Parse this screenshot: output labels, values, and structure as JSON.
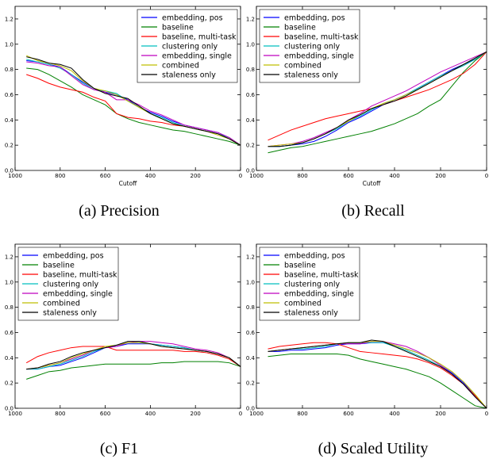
{
  "chart_data": [
    {
      "type": "line",
      "caption": "(a) Precision",
      "xlabel": "Cutoff",
      "ylabel": "",
      "xlim": [
        1000,
        0
      ],
      "ylim": [
        0,
        1.3
      ],
      "x_ticks": [
        1000,
        800,
        600,
        400,
        200,
        0
      ],
      "y_ticks": [
        0.0,
        0.2,
        0.4,
        0.6,
        0.8,
        1.0,
        1.2
      ],
      "grid": false,
      "legend_position": "top-right",
      "x": [
        950,
        900,
        850,
        800,
        750,
        700,
        650,
        600,
        550,
        500,
        450,
        400,
        350,
        300,
        250,
        200,
        150,
        100,
        50,
        0
      ],
      "series": [
        {
          "name": "embedding, pos",
          "color": "#0000ff",
          "values": [
            0.87,
            0.86,
            0.84,
            0.82,
            0.76,
            0.7,
            0.65,
            0.62,
            0.6,
            0.56,
            0.5,
            0.46,
            0.43,
            0.39,
            0.36,
            0.34,
            0.32,
            0.3,
            0.26,
            0.2
          ]
        },
        {
          "name": "baseline",
          "color": "#008000",
          "values": [
            0.81,
            0.8,
            0.76,
            0.71,
            0.66,
            0.6,
            0.56,
            0.52,
            0.45,
            0.41,
            0.38,
            0.36,
            0.34,
            0.32,
            0.31,
            0.29,
            0.27,
            0.25,
            0.23,
            0.2
          ]
        },
        {
          "name": "baseline, multi-task",
          "color": "#ff0000",
          "values": [
            0.76,
            0.73,
            0.69,
            0.66,
            0.64,
            0.62,
            0.58,
            0.55,
            0.45,
            0.42,
            0.41,
            0.39,
            0.38,
            0.36,
            0.35,
            0.33,
            0.31,
            0.29,
            0.26,
            0.2
          ]
        },
        {
          "name": "clustering only",
          "color": "#00bfbf",
          "values": [
            0.88,
            0.86,
            0.84,
            0.81,
            0.76,
            0.69,
            0.64,
            0.63,
            0.61,
            0.55,
            0.5,
            0.45,
            0.42,
            0.38,
            0.35,
            0.33,
            0.31,
            0.29,
            0.26,
            0.2
          ]
        },
        {
          "name": "embedding, single",
          "color": "#bf00bf",
          "values": [
            0.86,
            0.85,
            0.83,
            0.82,
            0.75,
            0.68,
            0.64,
            0.62,
            0.56,
            0.56,
            0.52,
            0.47,
            0.44,
            0.4,
            0.36,
            0.34,
            0.32,
            0.3,
            0.26,
            0.2
          ]
        },
        {
          "name": "combined",
          "color": "#bfbf00",
          "values": [
            0.91,
            0.87,
            0.85,
            0.83,
            0.79,
            0.71,
            0.65,
            0.63,
            0.6,
            0.55,
            0.5,
            0.45,
            0.41,
            0.37,
            0.35,
            0.33,
            0.31,
            0.28,
            0.25,
            0.2
          ]
        },
        {
          "name": "staleness only",
          "color": "#000000",
          "values": [
            0.9,
            0.88,
            0.85,
            0.84,
            0.81,
            0.72,
            0.65,
            0.61,
            0.59,
            0.57,
            0.51,
            0.45,
            0.41,
            0.37,
            0.35,
            0.33,
            0.31,
            0.29,
            0.25,
            0.2
          ]
        }
      ]
    },
    {
      "type": "line",
      "caption": "(b) Recall",
      "xlabel": "Cutoff",
      "ylabel": "",
      "xlim": [
        1000,
        0
      ],
      "ylim": [
        0,
        1.3
      ],
      "x_ticks": [
        1000,
        800,
        600,
        400,
        200,
        0
      ],
      "y_ticks": [
        0.0,
        0.2,
        0.4,
        0.6,
        0.8,
        1.0,
        1.2
      ],
      "grid": false,
      "legend_position": "top-left",
      "x": [
        950,
        900,
        850,
        800,
        750,
        700,
        650,
        600,
        550,
        500,
        450,
        400,
        350,
        300,
        250,
        200,
        150,
        100,
        50,
        0
      ],
      "series": [
        {
          "name": "embedding, pos",
          "color": "#0000ff",
          "values": [
            0.19,
            0.19,
            0.2,
            0.21,
            0.23,
            0.27,
            0.32,
            0.38,
            0.42,
            0.47,
            0.52,
            0.56,
            0.6,
            0.65,
            0.7,
            0.75,
            0.8,
            0.84,
            0.88,
            0.94
          ]
        },
        {
          "name": "baseline",
          "color": "#008000",
          "values": [
            0.14,
            0.16,
            0.18,
            0.19,
            0.21,
            0.23,
            0.25,
            0.27,
            0.29,
            0.31,
            0.34,
            0.37,
            0.41,
            0.45,
            0.51,
            0.56,
            0.67,
            0.78,
            0.87,
            0.94
          ]
        },
        {
          "name": "baseline, multi-task",
          "color": "#ff0000",
          "values": [
            0.24,
            0.28,
            0.32,
            0.35,
            0.38,
            0.41,
            0.43,
            0.45,
            0.47,
            0.49,
            0.52,
            0.55,
            0.58,
            0.61,
            0.64,
            0.68,
            0.72,
            0.77,
            0.84,
            0.94
          ]
        },
        {
          "name": "clustering only",
          "color": "#00bfbf",
          "values": [
            0.19,
            0.19,
            0.2,
            0.22,
            0.25,
            0.29,
            0.33,
            0.39,
            0.43,
            0.48,
            0.53,
            0.56,
            0.6,
            0.65,
            0.7,
            0.75,
            0.79,
            0.83,
            0.88,
            0.94
          ]
        },
        {
          "name": "embedding, single",
          "color": "#bf00bf",
          "values": [
            0.19,
            0.2,
            0.21,
            0.23,
            0.26,
            0.3,
            0.34,
            0.4,
            0.45,
            0.51,
            0.55,
            0.59,
            0.63,
            0.68,
            0.73,
            0.78,
            0.82,
            0.86,
            0.9,
            0.94
          ]
        },
        {
          "name": "combined",
          "color": "#bfbf00",
          "values": [
            0.19,
            0.2,
            0.21,
            0.22,
            0.25,
            0.29,
            0.34,
            0.39,
            0.44,
            0.49,
            0.53,
            0.56,
            0.6,
            0.64,
            0.69,
            0.74,
            0.79,
            0.84,
            0.89,
            0.94
          ]
        },
        {
          "name": "staleness only",
          "color": "#000000",
          "values": [
            0.19,
            0.19,
            0.2,
            0.22,
            0.25,
            0.29,
            0.34,
            0.4,
            0.44,
            0.49,
            0.52,
            0.55,
            0.59,
            0.64,
            0.69,
            0.74,
            0.79,
            0.84,
            0.89,
            0.94
          ]
        }
      ]
    },
    {
      "type": "line",
      "caption": "(c) F1",
      "xlabel": "",
      "ylabel": "",
      "xlim": [
        1000,
        0
      ],
      "ylim": [
        0,
        1.3
      ],
      "x_ticks": [
        1000,
        800,
        600,
        400,
        200,
        0
      ],
      "y_ticks": [
        0.0,
        0.2,
        0.4,
        0.6,
        0.8,
        1.0,
        1.2
      ],
      "grid": false,
      "legend_position": "top-left",
      "x": [
        950,
        900,
        850,
        800,
        750,
        700,
        650,
        600,
        550,
        500,
        450,
        400,
        350,
        300,
        250,
        200,
        150,
        100,
        50,
        0
      ],
      "series": [
        {
          "name": "embedding, pos",
          "color": "#0000ff",
          "values": [
            0.31,
            0.31,
            0.33,
            0.34,
            0.37,
            0.4,
            0.44,
            0.48,
            0.49,
            0.51,
            0.51,
            0.51,
            0.5,
            0.49,
            0.48,
            0.46,
            0.45,
            0.43,
            0.4,
            0.33
          ]
        },
        {
          "name": "baseline",
          "color": "#008000",
          "values": [
            0.23,
            0.26,
            0.29,
            0.3,
            0.32,
            0.33,
            0.34,
            0.35,
            0.35,
            0.35,
            0.35,
            0.35,
            0.36,
            0.36,
            0.37,
            0.37,
            0.37,
            0.37,
            0.36,
            0.33
          ]
        },
        {
          "name": "baseline, multi-task",
          "color": "#ff0000",
          "values": [
            0.36,
            0.41,
            0.44,
            0.46,
            0.48,
            0.49,
            0.49,
            0.49,
            0.46,
            0.46,
            0.46,
            0.46,
            0.46,
            0.46,
            0.45,
            0.45,
            0.44,
            0.42,
            0.39,
            0.33
          ]
        },
        {
          "name": "clustering only",
          "color": "#00bfbf",
          "values": [
            0.31,
            0.31,
            0.33,
            0.35,
            0.38,
            0.41,
            0.45,
            0.48,
            0.5,
            0.52,
            0.52,
            0.51,
            0.5,
            0.49,
            0.48,
            0.46,
            0.45,
            0.43,
            0.4,
            0.33
          ]
        },
        {
          "name": "embedding, single",
          "color": "#bf00bf",
          "values": [
            0.31,
            0.32,
            0.34,
            0.36,
            0.39,
            0.42,
            0.46,
            0.48,
            0.49,
            0.52,
            0.53,
            0.53,
            0.52,
            0.51,
            0.49,
            0.47,
            0.46,
            0.44,
            0.4,
            0.33
          ]
        },
        {
          "name": "combined",
          "color": "#bfbf00",
          "values": [
            0.31,
            0.32,
            0.34,
            0.36,
            0.4,
            0.43,
            0.46,
            0.49,
            0.5,
            0.52,
            0.52,
            0.51,
            0.49,
            0.48,
            0.47,
            0.46,
            0.45,
            0.43,
            0.4,
            0.33
          ]
        },
        {
          "name": "staleness only",
          "color": "#000000",
          "values": [
            0.31,
            0.32,
            0.35,
            0.37,
            0.41,
            0.44,
            0.46,
            0.48,
            0.5,
            0.53,
            0.53,
            0.51,
            0.49,
            0.48,
            0.47,
            0.46,
            0.45,
            0.43,
            0.4,
            0.33
          ]
        }
      ]
    },
    {
      "type": "line",
      "caption": "(d) Scaled Utility",
      "xlabel": "",
      "ylabel": "",
      "xlim": [
        1000,
        0
      ],
      "ylim": [
        0,
        1.3
      ],
      "x_ticks": [
        1000,
        800,
        600,
        400,
        200,
        0
      ],
      "y_ticks": [
        0.0,
        0.2,
        0.4,
        0.6,
        0.8,
        1.0,
        1.2
      ],
      "grid": false,
      "legend_position": "top-left",
      "x": [
        950,
        900,
        850,
        800,
        750,
        700,
        650,
        600,
        550,
        500,
        450,
        400,
        350,
        300,
        250,
        200,
        150,
        100,
        50,
        0
      ],
      "series": [
        {
          "name": "embedding, pos",
          "color": "#0000ff",
          "values": [
            0.45,
            0.45,
            0.46,
            0.46,
            0.47,
            0.48,
            0.5,
            0.51,
            0.51,
            0.52,
            0.52,
            0.5,
            0.47,
            0.44,
            0.4,
            0.34,
            0.28,
            0.2,
            0.1,
            0.0
          ]
        },
        {
          "name": "baseline",
          "color": "#008000",
          "values": [
            0.41,
            0.42,
            0.43,
            0.43,
            0.43,
            0.43,
            0.43,
            0.42,
            0.39,
            0.37,
            0.35,
            0.33,
            0.31,
            0.28,
            0.25,
            0.2,
            0.14,
            0.08,
            0.02,
            0.0
          ]
        },
        {
          "name": "baseline, multi-task",
          "color": "#ff0000",
          "values": [
            0.47,
            0.49,
            0.5,
            0.51,
            0.52,
            0.52,
            0.51,
            0.48,
            0.45,
            0.44,
            0.43,
            0.42,
            0.41,
            0.39,
            0.36,
            0.32,
            0.26,
            0.19,
            0.1,
            0.0
          ]
        },
        {
          "name": "clustering only",
          "color": "#00bfbf",
          "values": [
            0.45,
            0.46,
            0.47,
            0.47,
            0.48,
            0.49,
            0.51,
            0.52,
            0.52,
            0.52,
            0.52,
            0.49,
            0.46,
            0.42,
            0.38,
            0.33,
            0.27,
            0.19,
            0.09,
            0.0
          ]
        },
        {
          "name": "embedding, single",
          "color": "#bf00bf",
          "values": [
            0.45,
            0.46,
            0.47,
            0.48,
            0.49,
            0.5,
            0.51,
            0.51,
            0.51,
            0.53,
            0.53,
            0.51,
            0.49,
            0.45,
            0.4,
            0.34,
            0.27,
            0.19,
            0.09,
            0.0
          ]
        },
        {
          "name": "combined",
          "color": "#bfbf00",
          "values": [
            0.45,
            0.46,
            0.47,
            0.48,
            0.49,
            0.5,
            0.51,
            0.52,
            0.52,
            0.53,
            0.53,
            0.5,
            0.47,
            0.44,
            0.4,
            0.35,
            0.29,
            0.21,
            0.11,
            0.0
          ]
        },
        {
          "name": "staleness only",
          "color": "#000000",
          "values": [
            0.45,
            0.46,
            0.47,
            0.48,
            0.49,
            0.5,
            0.51,
            0.52,
            0.52,
            0.54,
            0.53,
            0.49,
            0.45,
            0.41,
            0.37,
            0.33,
            0.27,
            0.19,
            0.09,
            0.0
          ]
        }
      ]
    }
  ]
}
